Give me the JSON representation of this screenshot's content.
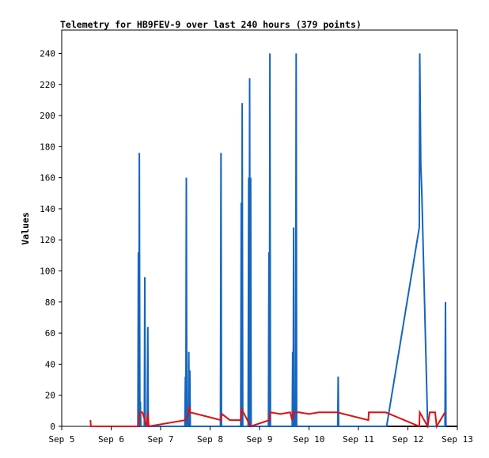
{
  "chart_data": {
    "type": "line",
    "title": "Telemetry for HB9FEV-9 over last 240 hours (379 points)",
    "ylabel": "Values",
    "xlabel": "",
    "x_unit": "days in September",
    "xlim": [
      5,
      13
    ],
    "ylim": [
      0,
      255
    ],
    "x_ticks": [
      {
        "x": 5,
        "label": "Sep 5"
      },
      {
        "x": 6,
        "label": "Sep 6"
      },
      {
        "x": 7,
        "label": "Sep 7"
      },
      {
        "x": 8,
        "label": "Sep 8"
      },
      {
        "x": 9,
        "label": "Sep 9"
      },
      {
        "x": 10,
        "label": "Sep 10"
      },
      {
        "x": 11,
        "label": "Sep 11"
      },
      {
        "x": 12,
        "label": "Sep 12"
      },
      {
        "x": 13,
        "label": "Sep 13"
      }
    ],
    "y_ticks": [
      {
        "y": 0,
        "label": "0"
      },
      {
        "y": 20,
        "label": "20"
      },
      {
        "y": 40,
        "label": "40"
      },
      {
        "y": 60,
        "label": "60"
      },
      {
        "y": 80,
        "label": "80"
      },
      {
        "y": 100,
        "label": "100"
      },
      {
        "y": 120,
        "label": "120"
      },
      {
        "y": 140,
        "label": "140"
      },
      {
        "y": 160,
        "label": "160"
      },
      {
        "y": 180,
        "label": "180"
      },
      {
        "y": 200,
        "label": "200"
      },
      {
        "y": 220,
        "label": "220"
      },
      {
        "y": 240,
        "label": "240"
      }
    ],
    "grid": false,
    "legend": "none",
    "series": [
      {
        "color": "#000000",
        "points": [
          [
            5.58,
            0
          ],
          [
            13,
            0
          ]
        ]
      },
      {
        "color": "#1565c0",
        "points": [
          [
            5.58,
            0
          ],
          [
            6.54,
            0
          ],
          [
            6.55,
            112
          ],
          [
            6.56,
            0
          ],
          [
            6.57,
            176
          ],
          [
            6.58,
            0
          ],
          [
            6.59,
            16
          ],
          [
            6.6,
            0
          ],
          [
            6.67,
            0
          ],
          [
            6.68,
            96
          ],
          [
            6.69,
            0
          ],
          [
            6.73,
            0
          ],
          [
            6.74,
            64
          ],
          [
            6.75,
            0
          ],
          [
            7.49,
            0
          ],
          [
            7.5,
            32
          ],
          [
            7.51,
            0
          ],
          [
            7.52,
            160
          ],
          [
            7.53,
            0
          ],
          [
            7.56,
            0
          ],
          [
            7.57,
            48
          ],
          [
            7.58,
            0
          ],
          [
            7.59,
            36
          ],
          [
            7.6,
            0
          ],
          [
            8.21,
            0
          ],
          [
            8.22,
            176
          ],
          [
            8.23,
            0
          ],
          [
            8.62,
            0
          ],
          [
            8.63,
            144
          ],
          [
            8.64,
            0
          ],
          [
            8.65,
            208
          ],
          [
            8.66,
            0
          ],
          [
            8.77,
            0
          ],
          [
            8.78,
            160
          ],
          [
            8.79,
            0
          ],
          [
            8.8,
            224
          ],
          [
            8.81,
            0
          ],
          [
            8.82,
            160
          ],
          [
            8.83,
            0
          ],
          [
            9.18,
            0
          ],
          [
            9.19,
            112
          ],
          [
            9.2,
            0
          ],
          [
            9.21,
            240
          ],
          [
            9.22,
            0
          ],
          [
            9.66,
            0
          ],
          [
            9.67,
            48
          ],
          [
            9.68,
            0
          ],
          [
            9.69,
            128
          ],
          [
            9.7,
            0
          ],
          [
            9.73,
            0
          ],
          [
            9.74,
            240
          ],
          [
            9.75,
            0
          ],
          [
            10.58,
            0
          ],
          [
            10.59,
            32
          ],
          [
            10.6,
            0
          ],
          [
            11.57,
            0
          ],
          [
            12.23,
            128
          ],
          [
            12.24,
            240
          ],
          [
            12.26,
            168
          ],
          [
            12.28,
            152
          ],
          [
            12.4,
            0
          ],
          [
            12.75,
            0
          ],
          [
            12.76,
            80
          ],
          [
            12.77,
            0
          ]
        ]
      },
      {
        "color": "#e01010",
        "points": [
          [
            5.58,
            4
          ],
          [
            5.59,
            0
          ],
          [
            6.55,
            0
          ],
          [
            6.58,
            9
          ],
          [
            6.63,
            9
          ],
          [
            6.72,
            0
          ],
          [
            6.74,
            9
          ],
          [
            6.76,
            0
          ],
          [
            7.5,
            4
          ],
          [
            7.56,
            8
          ],
          [
            7.58,
            13
          ],
          [
            7.6,
            9
          ],
          [
            8.22,
            4
          ],
          [
            8.24,
            8
          ],
          [
            8.4,
            4
          ],
          [
            8.62,
            4
          ],
          [
            8.64,
            11
          ],
          [
            8.82,
            0
          ],
          [
            9.2,
            4
          ],
          [
            9.22,
            9
          ],
          [
            9.42,
            8
          ],
          [
            9.62,
            9
          ],
          [
            9.66,
            4
          ],
          [
            9.68,
            9
          ],
          [
            9.74,
            9
          ],
          [
            9.8,
            9
          ],
          [
            10.0,
            8
          ],
          [
            10.2,
            9
          ],
          [
            10.57,
            9
          ],
          [
            11.2,
            4
          ],
          [
            11.21,
            9
          ],
          [
            11.55,
            9
          ],
          [
            12.23,
            0
          ],
          [
            12.24,
            9
          ],
          [
            12.4,
            0
          ],
          [
            12.44,
            9
          ],
          [
            12.55,
            9
          ],
          [
            12.58,
            0
          ],
          [
            12.75,
            9
          ]
        ]
      }
    ]
  }
}
